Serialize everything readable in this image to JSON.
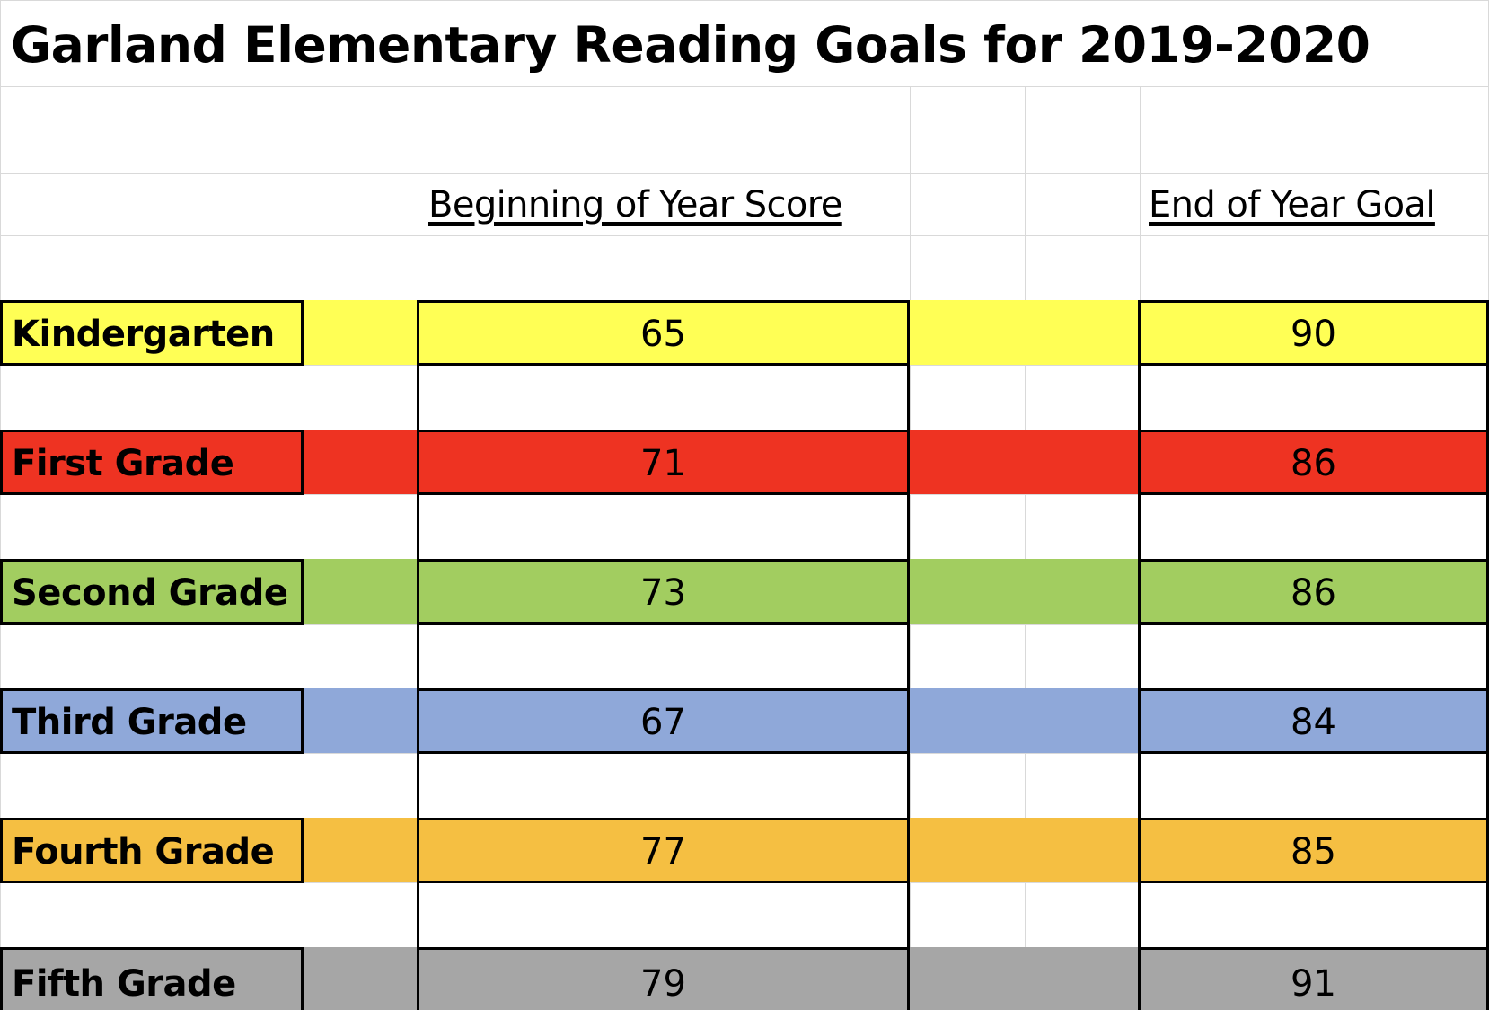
{
  "sheet": {
    "title": "Garland Elementary Reading Goals for 2019-2020",
    "headers": {
      "beginning": "Beginning of Year Score",
      "end": "End of Year Goal"
    },
    "rows": [
      {
        "grade": "Kindergarten",
        "beginning": "65",
        "end": "90",
        "color": "#FFFF55"
      },
      {
        "grade": "First Grade",
        "beginning": "71",
        "end": "86",
        "color": "#EE3322"
      },
      {
        "grade": "Second Grade",
        "beginning": "73",
        "end": "86",
        "color": "#A2CD60"
      },
      {
        "grade": "Third Grade",
        "beginning": "67",
        "end": "84",
        "color": "#8FA8D9"
      },
      {
        "grade": "Fourth Grade",
        "beginning": "77",
        "end": "85",
        "color": "#F5BF42"
      },
      {
        "grade": "Fifth Grade",
        "beginning": "79",
        "end": "91",
        "color": "#A6A6A6"
      }
    ]
  }
}
